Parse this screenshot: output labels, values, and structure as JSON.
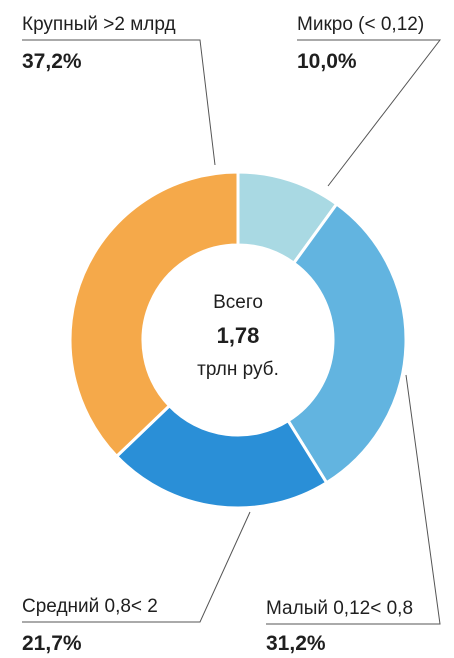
{
  "chart_data": {
    "type": "pie",
    "donut": true,
    "categories": [
      "Микро (< 0,12)",
      "Малый 0,12< 0,8",
      "Средний 0,8< 2",
      "Крупный >2 млрд"
    ],
    "values": [
      10.0,
      31.2,
      21.7,
      37.2
    ],
    "value_labels": [
      "10,0%",
      "31,2%",
      "21,7%",
      "37,2%"
    ],
    "colors": [
      "#a9d9e3",
      "#62b4e0",
      "#2a8fd7",
      "#f5a94a"
    ],
    "center": {
      "line1": "Всего",
      "value": "1,78",
      "line3": "трлн руб."
    }
  }
}
